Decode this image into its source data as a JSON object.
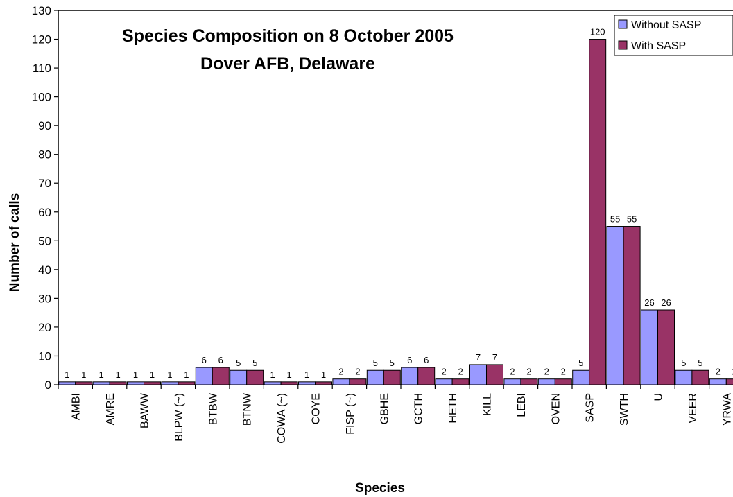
{
  "chart_data": {
    "type": "bar",
    "title": "Species Composition on 8 October 2005",
    "subtitle": "Dover AFB, Delaware",
    "xlabel": "Species",
    "ylabel": "Number of calls",
    "ylim": [
      0,
      130
    ],
    "ytick_step": 10,
    "grid": false,
    "legend_position": "top-right",
    "categories": [
      "AMBI",
      "AMRE",
      "BAWW",
      "BLPW (~)",
      "BTBW",
      "BTNW",
      "COWA (~)",
      "COYE",
      "FISP (~)",
      "GBHE",
      "GCTH",
      "HETH",
      "KILL",
      "LEBI",
      "OVEN",
      "SASP",
      "SWTH",
      "U",
      "VEER",
      "YRWA"
    ],
    "series": [
      {
        "name": "Without SASP",
        "color": "#9999ff",
        "values": [
          1,
          1,
          1,
          1,
          6,
          5,
          1,
          1,
          2,
          5,
          6,
          2,
          7,
          2,
          2,
          5,
          55,
          26,
          5,
          2
        ]
      },
      {
        "name": "With SASP",
        "color": "#993366",
        "values": [
          1,
          1,
          1,
          1,
          6,
          5,
          1,
          1,
          2,
          5,
          6,
          2,
          7,
          2,
          2,
          120,
          55,
          26,
          5,
          2
        ]
      }
    ]
  }
}
